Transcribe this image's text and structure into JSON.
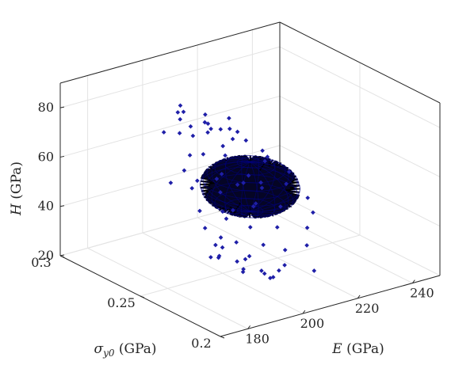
{
  "chart_data": {
    "type": "scatter",
    "subtype": "3d-scatter-with-ellipsoid-surface",
    "title": "",
    "axes": {
      "x": {
        "label_var": "E",
        "label_unit": " (GPa)",
        "range": [
          170,
          250
        ],
        "ticks": [
          "180",
          "200",
          "220",
          "240"
        ]
      },
      "y": {
        "label_var": "σ",
        "label_sub": "y0",
        "label_unit": " (GPa)",
        "range": [
          0.2,
          0.3
        ],
        "ticks": [
          "0.2",
          "0.25",
          "0.3"
        ]
      },
      "z": {
        "label_var": "H",
        "label_unit": " (GPa)",
        "range": [
          20,
          90
        ],
        "ticks": [
          "20",
          "40",
          "60",
          "80"
        ]
      }
    },
    "grid": true,
    "box": true,
    "ellipsoid": {
      "center_E": 210,
      "center_sigma_y0": 0.25,
      "center_H": 52,
      "radius_E": 14,
      "radius_sigma_y0": 0.02,
      "radius_H": 10,
      "color": "#00008b"
    },
    "points_color": "#1f1fa8",
    "points": [
      [
        178.0,
        0.21,
        62.0
      ],
      [
        182.0,
        0.235,
        68.0
      ],
      [
        185.0,
        0.215,
        72.0
      ],
      [
        188.0,
        0.23,
        70.5
      ],
      [
        190.0,
        0.245,
        73.0
      ],
      [
        193.0,
        0.225,
        67.0
      ],
      [
        195.0,
        0.26,
        74.0
      ],
      [
        198.0,
        0.245,
        70.0
      ],
      [
        200.0,
        0.27,
        73.0
      ],
      [
        203.0,
        0.255,
        69.0
      ],
      [
        205.0,
        0.285,
        75.0
      ],
      [
        208.0,
        0.265,
        71.0
      ],
      [
        211.0,
        0.28,
        68.0
      ],
      [
        214.0,
        0.27,
        72.0
      ],
      [
        217.0,
        0.29,
        66.0
      ],
      [
        220.0,
        0.275,
        63.0
      ],
      [
        223.0,
        0.285,
        60.0
      ],
      [
        226.0,
        0.28,
        56.0
      ],
      [
        228.0,
        0.27,
        52.0
      ],
      [
        230.0,
        0.275,
        48.0
      ],
      [
        229.0,
        0.26,
        44.0
      ],
      [
        226.0,
        0.27,
        40.0
      ],
      [
        231.0,
        0.25,
        41.0
      ],
      [
        224.0,
        0.255,
        38.0
      ],
      [
        220.0,
        0.265,
        36.0
      ],
      [
        217.0,
        0.245,
        35.0
      ],
      [
        213.0,
        0.255,
        33.0
      ],
      [
        209.0,
        0.24,
        32.0
      ],
      [
        205.0,
        0.25,
        31.0
      ],
      [
        201.0,
        0.235,
        31.5
      ],
      [
        197.0,
        0.245,
        33.0
      ],
      [
        193.0,
        0.225,
        32.0
      ],
      [
        190.0,
        0.235,
        35.0
      ],
      [
        187.0,
        0.215,
        36.0
      ],
      [
        184.0,
        0.23,
        38.0
      ],
      [
        181.0,
        0.22,
        42.0
      ],
      [
        179.0,
        0.205,
        46.0
      ],
      [
        177.0,
        0.215,
        50.0
      ],
      [
        176.0,
        0.21,
        55.0
      ],
      [
        180.0,
        0.23,
        58.0
      ],
      [
        183.0,
        0.24,
        63.0
      ],
      [
        186.0,
        0.25,
        66.0
      ],
      [
        191.0,
        0.255,
        69.0
      ],
      [
        196.0,
        0.27,
        71.5
      ],
      [
        202.0,
        0.28,
        72.0
      ],
      [
        207.0,
        0.29,
        70.0
      ],
      [
        212.0,
        0.295,
        67.0
      ],
      [
        218.0,
        0.29,
        62.0
      ],
      [
        222.0,
        0.295,
        57.0
      ],
      [
        227.0,
        0.29,
        53.0
      ],
      [
        232.0,
        0.28,
        50.0
      ],
      [
        233.0,
        0.265,
        46.0
      ],
      [
        230.0,
        0.245,
        37.0
      ],
      [
        225.0,
        0.24,
        34.0
      ],
      [
        219.0,
        0.23,
        32.0
      ],
      [
        214.0,
        0.235,
        30.0
      ],
      [
        208.0,
        0.225,
        29.0
      ],
      [
        203.0,
        0.22,
        30.0
      ],
      [
        198.0,
        0.215,
        30.5
      ],
      [
        194.0,
        0.21,
        33.0
      ],
      [
        189.0,
        0.205,
        38.0
      ],
      [
        185.0,
        0.2,
        42.0
      ],
      [
        182.0,
        0.205,
        46.0
      ],
      [
        179.0,
        0.225,
        53.0
      ],
      [
        184.0,
        0.255,
        60.0
      ],
      [
        199.0,
        0.285,
        66.0
      ],
      [
        215.0,
        0.285,
        61.0
      ],
      [
        224.0,
        0.275,
        44.0
      ],
      [
        210.0,
        0.21,
        31.0
      ],
      [
        192.0,
        0.24,
        64.0
      ],
      [
        205.0,
        0.26,
        48.0
      ],
      [
        211.0,
        0.245,
        55.0
      ],
      [
        200.0,
        0.25,
        45.0
      ],
      [
        215.0,
        0.255,
        42.0
      ],
      [
        195.0,
        0.235,
        52.0
      ]
    ]
  }
}
